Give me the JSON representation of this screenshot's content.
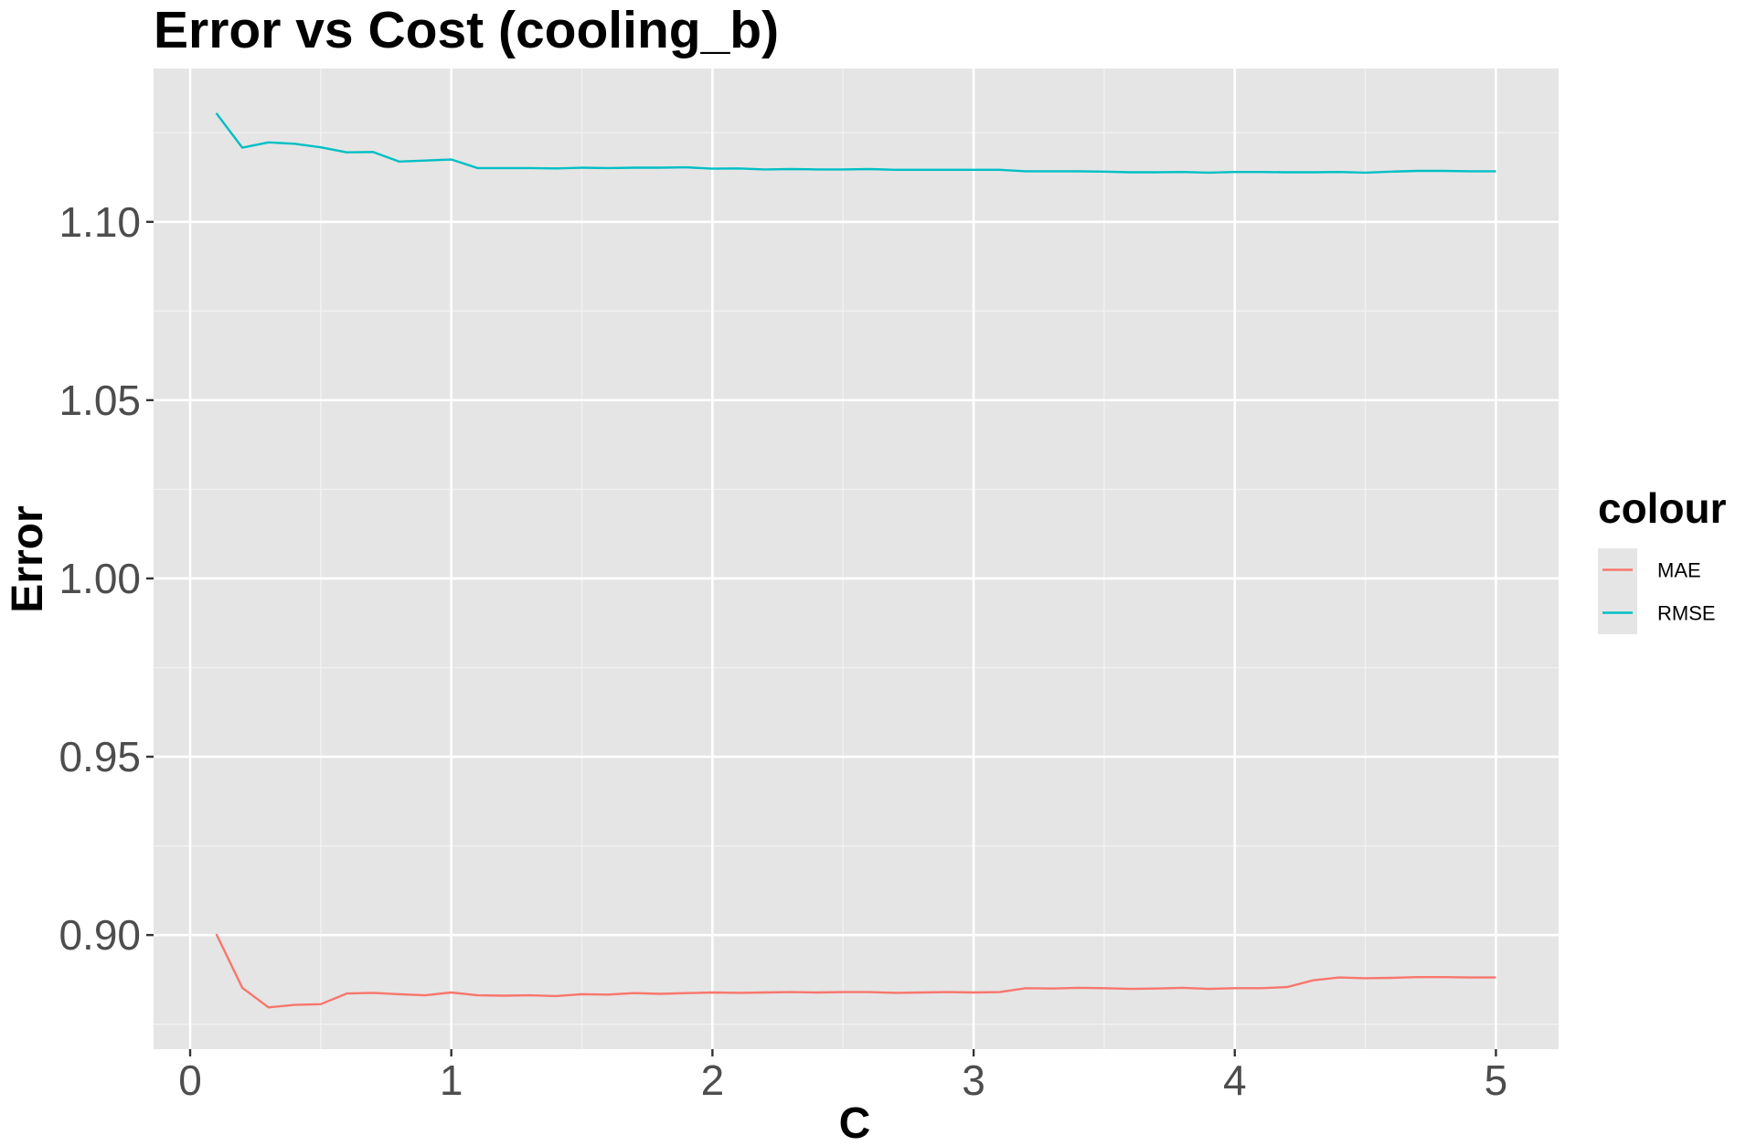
{
  "colors": {
    "panel_bg": "#e5e5e5",
    "grid_major": "#ffffff",
    "grid_minor": "#f2f2f2",
    "tick": "#333333",
    "MAE": "#f8766d",
    "RMSE": "#00bfc4"
  },
  "chart_data": {
    "type": "line",
    "title": "Error vs Cost (cooling_b)",
    "xlabel": "C",
    "ylabel": "Error",
    "xlim": [
      -0.14,
      5.24
    ],
    "ylim": [
      0.868,
      1.143
    ],
    "x_ticks": [
      0,
      1,
      2,
      3,
      4,
      5
    ],
    "x_tick_labels": [
      "0",
      "1",
      "2",
      "3",
      "4",
      "5"
    ],
    "y_ticks": [
      0.9,
      0.95,
      1.0,
      1.05,
      1.1
    ],
    "y_tick_labels": [
      "0.90",
      "0.95",
      "1.00",
      "1.05",
      "1.10"
    ],
    "grid": true,
    "legend": {
      "title": "colour",
      "position": "right"
    },
    "x": [
      0.1,
      0.2,
      0.3,
      0.4,
      0.5,
      0.6,
      0.7,
      0.8,
      0.9,
      1.0,
      1.1,
      1.2,
      1.3,
      1.4,
      1.5,
      1.6,
      1.7,
      1.8,
      1.9,
      2.0,
      2.1,
      2.2,
      2.3,
      2.4,
      2.5,
      2.6,
      2.7,
      2.8,
      2.9,
      3.0,
      3.1,
      3.2,
      3.3,
      3.4,
      3.5,
      3.6,
      3.7,
      3.8,
      3.9,
      4.0,
      4.1,
      4.2,
      4.3,
      4.4,
      4.5,
      4.6,
      4.7,
      4.8,
      4.9,
      5.0
    ],
    "series": [
      {
        "name": "MAE",
        "values": [
          0.9003,
          0.8852,
          0.8797,
          0.8804,
          0.8806,
          0.8836,
          0.8838,
          0.8834,
          0.8831,
          0.8839,
          0.8831,
          0.883,
          0.8831,
          0.8829,
          0.8834,
          0.8833,
          0.8837,
          0.8835,
          0.8837,
          0.8839,
          0.8838,
          0.8839,
          0.884,
          0.8839,
          0.884,
          0.884,
          0.8838,
          0.8839,
          0.884,
          0.8839,
          0.884,
          0.8851,
          0.885,
          0.8852,
          0.8851,
          0.8849,
          0.885,
          0.8852,
          0.8849,
          0.8851,
          0.8851,
          0.8854,
          0.8873,
          0.8881,
          0.8879,
          0.888,
          0.8882,
          0.8882,
          0.8881,
          0.8881
        ]
      },
      {
        "name": "RMSE",
        "values": [
          1.1305,
          1.1208,
          1.1223,
          1.1219,
          1.1209,
          1.1195,
          1.1196,
          1.1169,
          1.1172,
          1.1175,
          1.1151,
          1.1151,
          1.1151,
          1.115,
          1.1152,
          1.1151,
          1.1152,
          1.1152,
          1.1153,
          1.1149,
          1.115,
          1.1147,
          1.1148,
          1.1147,
          1.1147,
          1.1148,
          1.1146,
          1.1146,
          1.1146,
          1.1146,
          1.1146,
          1.1142,
          1.1142,
          1.1142,
          1.1141,
          1.1139,
          1.1139,
          1.114,
          1.1138,
          1.114,
          1.114,
          1.1139,
          1.1139,
          1.114,
          1.1138,
          1.1141,
          1.1143,
          1.1143,
          1.1142,
          1.1142
        ]
      }
    ]
  }
}
